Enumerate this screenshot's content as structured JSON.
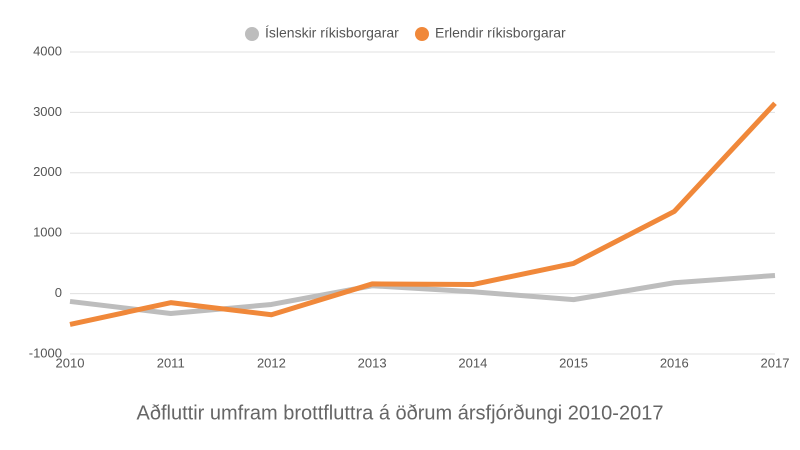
{
  "chart_data": {
    "type": "line",
    "title": "Aðfluttir umfram brottfluttra á öðrum ársfjórðungi 2010-2017",
    "x": [
      2010,
      2011,
      2012,
      2013,
      2014,
      2015,
      2016,
      2017
    ],
    "series": [
      {
        "name": "Íslenskir ríkisborgarar",
        "color": "#bdbdbd",
        "values": [
          -130,
          -330,
          -180,
          130,
          30,
          -100,
          180,
          300
        ]
      },
      {
        "name": "Erlendir ríkisborgarar",
        "color": "#f0883a",
        "values": [
          -510,
          -150,
          -350,
          160,
          150,
          500,
          1360,
          3150
        ]
      }
    ],
    "xlim": [
      2010,
      2017
    ],
    "xticks": [
      2010,
      2011,
      2012,
      2013,
      2014,
      2015,
      2016,
      2017
    ],
    "ylim": [
      -1000,
      4000
    ],
    "yticks": [
      -1000,
      0,
      1000,
      2000,
      3000,
      4000
    ],
    "grid": true,
    "legend": "top"
  }
}
